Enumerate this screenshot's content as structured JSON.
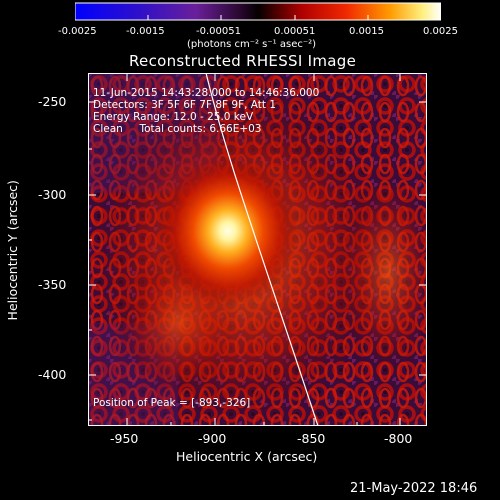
{
  "colorbar": {
    "tick_labels": [
      "-0.0025",
      "-0.0015",
      "-0.00051",
      "0.00051",
      "0.0015",
      "0.0025"
    ],
    "units_label": "(photons cm⁻² s⁻¹ asec⁻²)"
  },
  "title": "Reconstructed RHESSI Image",
  "info": {
    "time": "11-Jun-2015 14:43:28.000 to 14:46:36.000",
    "detectors": "Detectors: 3F 5F 6F 7F 8F 9F, Att 1",
    "energy": "Energy Range: 12.0 - 25.0 keV",
    "clean": "Clean     Total counts: 6.66E+03"
  },
  "peak_label": "Position of Peak = [-893,-326]",
  "axes": {
    "xlabel": "Heliocentric X (arcsec)",
    "ylabel": "Heliocentric Y (arcsec)",
    "x_ticks": [
      "-950",
      "-900",
      "-850",
      "-800"
    ],
    "y_ticks": [
      "-250",
      "-300",
      "-350",
      "-400"
    ]
  },
  "footer": {
    "date": "21-May-2022 18:46"
  },
  "image": {
    "x_range": [
      -975,
      -785
    ],
    "y_range": [
      -425,
      -240
    ],
    "peak_x": -893,
    "peak_y": -326
  }
}
